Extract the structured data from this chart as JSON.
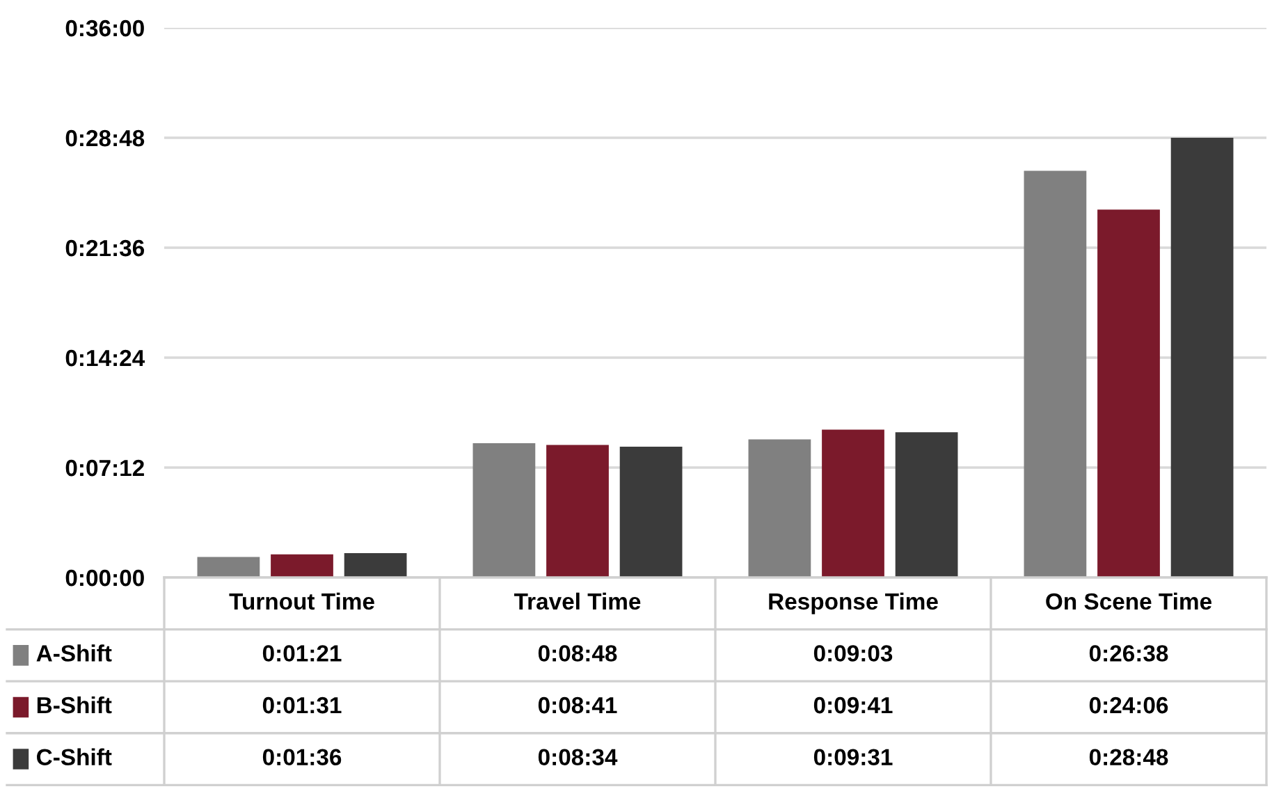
{
  "chart_data": {
    "type": "bar",
    "categories": [
      "Turnout Time",
      "Travel Time",
      "Response Time",
      "On Scene Time"
    ],
    "series": [
      {
        "name": "A-Shift",
        "color": "#808080",
        "values": [
          81,
          528,
          543,
          1598
        ],
        "value_labels": [
          "0:01:21",
          "0:08:48",
          "0:09:03",
          "0:26:38"
        ]
      },
      {
        "name": "B-Shift",
        "color": "#7b1a2b",
        "values": [
          91,
          521,
          581,
          1446
        ],
        "value_labels": [
          "0:01:31",
          "0:08:41",
          "0:09:41",
          "0:24:06"
        ]
      },
      {
        "name": "C-Shift",
        "color": "#3b3b3b",
        "values": [
          96,
          514,
          571,
          1728
        ],
        "value_labels": [
          "0:01:36",
          "0:08:34",
          "0:09:31",
          "0:28:48"
        ]
      }
    ],
    "ylim": [
      0,
      2160
    ],
    "yticks": [
      {
        "value": 0,
        "label": "0:00:00"
      },
      {
        "value": 432,
        "label": "0:07:12"
      },
      {
        "value": 864,
        "label": "0:14:24"
      },
      {
        "value": 1296,
        "label": "0:21:36"
      },
      {
        "value": 1728,
        "label": "0:28:48"
      },
      {
        "value": 2160,
        "label": "0:36:00"
      }
    ],
    "grid": "y",
    "legend": "bottom"
  }
}
